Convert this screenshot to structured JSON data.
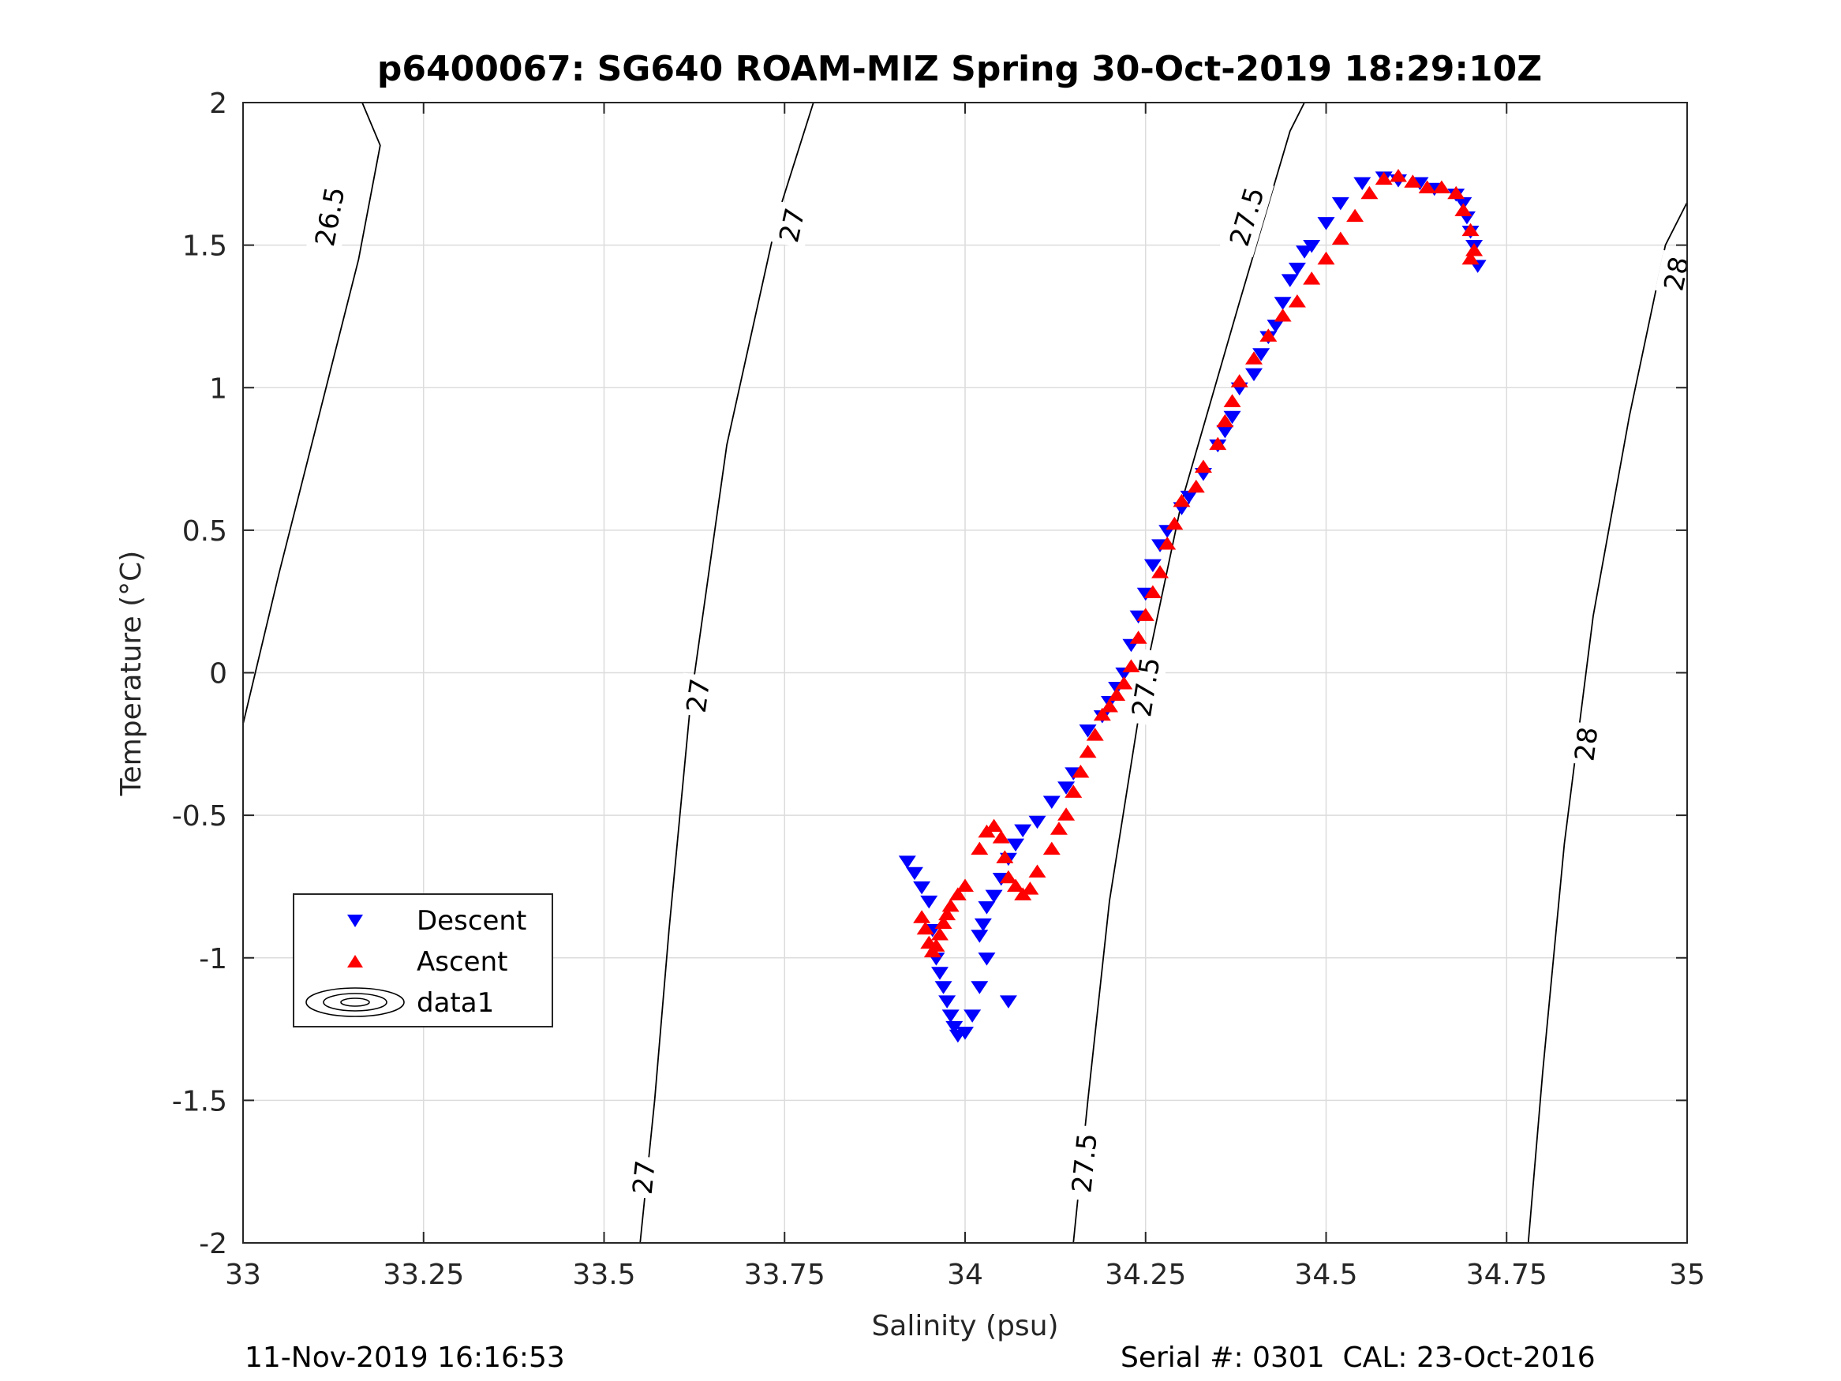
{
  "footer": {
    "left": "11-Nov-2019 16:16:53",
    "right": "Serial #: 0301  CAL: 23-Oct-2016"
  },
  "chart_data": {
    "type": "scatter",
    "title": "p6400067: SG640 ROAM-MIZ Spring 30-Oct-2019 18:29:10Z",
    "xlabel": "Salinity (psu)",
    "ylabel": "Temperature (°C)",
    "xlim": [
      33,
      35
    ],
    "ylim": [
      -2,
      2
    ],
    "xticks": [
      "33",
      "33.25",
      "33.5",
      "33.75",
      "34",
      "34.25",
      "34.5",
      "34.75",
      "35"
    ],
    "yticks": [
      "2",
      "1.5",
      "1",
      "0.5",
      "0",
      "-0.5",
      "-1",
      "-1.5",
      "-2"
    ],
    "grid": true,
    "legend": {
      "location": "lower-left",
      "entries": [
        {
          "label": "Descent",
          "marker": "triangle-down",
          "color": "#0000ff"
        },
        {
          "label": "Ascent",
          "marker": "triangle-up",
          "color": "#ff0000"
        },
        {
          "label": "data1",
          "marker": "contour",
          "color": "#000000"
        }
      ]
    },
    "contours": [
      {
        "level": "26.5",
        "points": [
          [
            33.0,
            -0.18
          ],
          [
            33.05,
            0.35
          ],
          [
            33.1,
            0.85
          ],
          [
            33.16,
            1.45
          ],
          [
            33.19,
            1.85
          ],
          [
            33.165,
            2.0
          ]
        ],
        "labels": [
          {
            "x": 33.12,
            "y": 1.6
          }
        ]
      },
      {
        "level": "27",
        "points": [
          [
            33.55,
            -2.0
          ],
          [
            33.57,
            -1.5
          ],
          [
            33.59,
            -0.9
          ],
          [
            33.62,
            -0.1
          ],
          [
            33.67,
            0.8
          ],
          [
            33.74,
            1.6
          ],
          [
            33.79,
            2.0
          ]
        ],
        "labels": [
          {
            "x": 33.76,
            "y": 1.57
          },
          {
            "x": 33.63,
            "y": -0.08
          },
          {
            "x": 33.555,
            "y": -1.77
          }
        ]
      },
      {
        "level": "27.5",
        "points": [
          [
            34.15,
            -2.0
          ],
          [
            34.17,
            -1.5
          ],
          [
            34.2,
            -0.8
          ],
          [
            34.25,
            0.0
          ],
          [
            34.3,
            0.6
          ],
          [
            34.38,
            1.3
          ],
          [
            34.45,
            1.9
          ],
          [
            34.47,
            2.0
          ]
        ],
        "labels": [
          {
            "x": 34.39,
            "y": 1.6
          },
          {
            "x": 34.25,
            "y": -0.05
          },
          {
            "x": 34.165,
            "y": -1.72
          }
        ]
      },
      {
        "level": "28",
        "points": [
          [
            34.78,
            -2.0
          ],
          [
            34.8,
            -1.4
          ],
          [
            34.83,
            -0.6
          ],
          [
            34.87,
            0.2
          ],
          [
            34.92,
            0.9
          ],
          [
            34.97,
            1.5
          ],
          [
            35.0,
            1.65
          ]
        ],
        "labels": [
          {
            "x": 34.985,
            "y": 1.4
          },
          {
            "x": 34.86,
            "y": -0.25
          }
        ]
      }
    ],
    "series": [
      {
        "name": "Descent",
        "marker": "triangle-down",
        "color": "#0000ff",
        "x": [
          33.92,
          33.93,
          33.94,
          33.95,
          33.955,
          33.96,
          33.965,
          33.97,
          33.975,
          33.98,
          33.985,
          33.99,
          34.0,
          34.01,
          34.02,
          34.03,
          34.02,
          34.025,
          34.03,
          34.04,
          34.05,
          34.06,
          34.07,
          34.08,
          34.1,
          34.12,
          34.14,
          34.15,
          34.17,
          34.19,
          34.2,
          34.21,
          34.22,
          34.23,
          34.24,
          34.25,
          34.26,
          34.27,
          34.28,
          34.3,
          34.31,
          34.33,
          34.35,
          34.36,
          34.37,
          34.38,
          34.4,
          34.41,
          34.42,
          34.43,
          34.44,
          34.45,
          34.46,
          34.47,
          34.48,
          34.5,
          34.52,
          34.55,
          34.58,
          34.6,
          34.63,
          34.65,
          34.68,
          34.69,
          34.695,
          34.7,
          34.705,
          34.71,
          34.06
        ],
        "y": [
          -0.66,
          -0.7,
          -0.75,
          -0.8,
          -0.9,
          -1.0,
          -1.05,
          -1.1,
          -1.15,
          -1.2,
          -1.24,
          -1.27,
          -1.26,
          -1.2,
          -1.1,
          -1.0,
          -0.92,
          -0.88,
          -0.82,
          -0.78,
          -0.72,
          -0.65,
          -0.6,
          -0.55,
          -0.52,
          -0.45,
          -0.4,
          -0.35,
          -0.2,
          -0.15,
          -0.1,
          -0.05,
          0.0,
          0.1,
          0.2,
          0.28,
          0.38,
          0.45,
          0.5,
          0.58,
          0.62,
          0.7,
          0.8,
          0.85,
          0.9,
          1.0,
          1.05,
          1.12,
          1.18,
          1.22,
          1.3,
          1.38,
          1.42,
          1.48,
          1.5,
          1.58,
          1.65,
          1.72,
          1.74,
          1.73,
          1.72,
          1.7,
          1.68,
          1.65,
          1.6,
          1.55,
          1.5,
          1.43,
          -1.15
        ]
      },
      {
        "name": "Ascent",
        "marker": "triangle-up",
        "color": "#ff0000",
        "x": [
          33.94,
          33.945,
          33.95,
          33.955,
          33.96,
          33.965,
          33.97,
          33.975,
          33.98,
          33.99,
          34.0,
          34.02,
          34.03,
          34.04,
          34.05,
          34.055,
          34.06,
          34.07,
          34.08,
          34.09,
          34.1,
          34.12,
          34.13,
          34.14,
          34.15,
          34.16,
          34.17,
          34.18,
          34.19,
          34.2,
          34.21,
          34.22,
          34.23,
          34.24,
          34.25,
          34.26,
          34.27,
          34.28,
          34.29,
          34.3,
          34.32,
          34.33,
          34.35,
          34.36,
          34.37,
          34.38,
          34.4,
          34.42,
          34.44,
          34.46,
          34.48,
          34.5,
          34.52,
          34.54,
          34.56,
          34.58,
          34.6,
          34.62,
          34.64,
          34.66,
          34.68,
          34.69,
          34.7,
          34.705,
          34.7
        ],
        "y": [
          -0.86,
          -0.9,
          -0.95,
          -0.98,
          -0.96,
          -0.92,
          -0.88,
          -0.85,
          -0.82,
          -0.78,
          -0.75,
          -0.62,
          -0.56,
          -0.54,
          -0.58,
          -0.65,
          -0.72,
          -0.75,
          -0.78,
          -0.76,
          -0.7,
          -0.62,
          -0.55,
          -0.5,
          -0.42,
          -0.35,
          -0.28,
          -0.22,
          -0.15,
          -0.12,
          -0.08,
          -0.04,
          0.02,
          0.12,
          0.2,
          0.28,
          0.35,
          0.45,
          0.52,
          0.6,
          0.65,
          0.72,
          0.8,
          0.88,
          0.95,
          1.02,
          1.1,
          1.18,
          1.25,
          1.3,
          1.38,
          1.45,
          1.52,
          1.6,
          1.68,
          1.73,
          1.74,
          1.72,
          1.7,
          1.7,
          1.68,
          1.62,
          1.55,
          1.48,
          1.45
        ]
      }
    ]
  }
}
